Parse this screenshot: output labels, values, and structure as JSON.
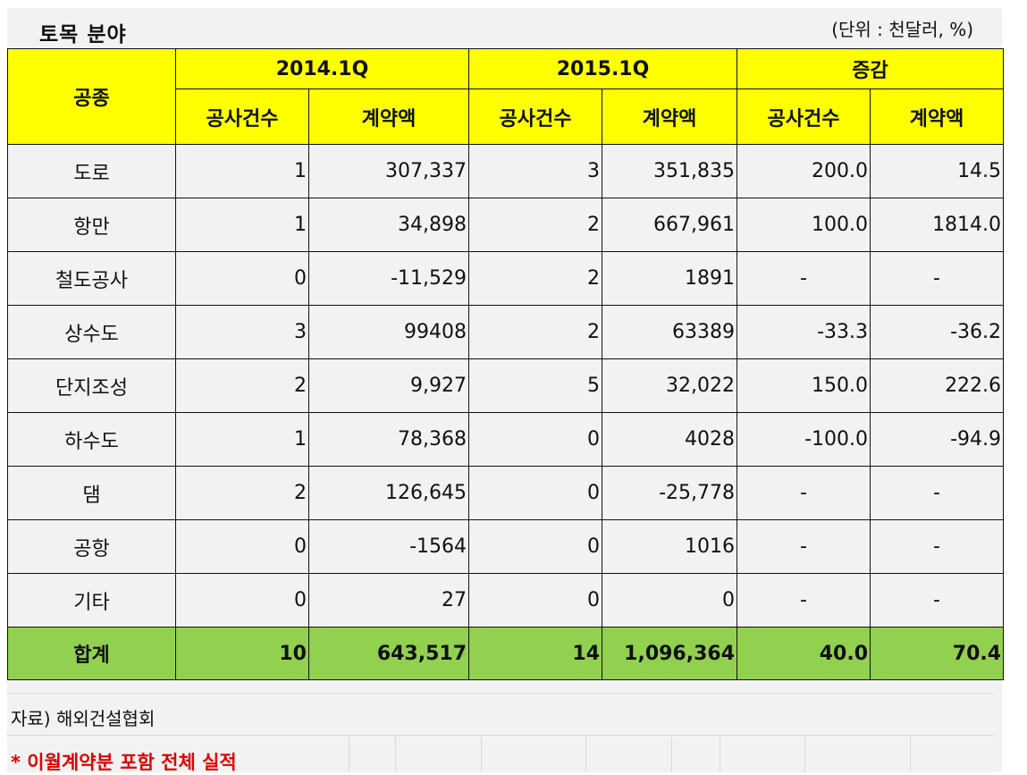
{
  "title": "토목 분야",
  "unit": "(단위 : 천달러, %)",
  "headers": {
    "category": "공종",
    "periods": [
      "2014.1Q",
      "2015.1Q",
      "증감"
    ],
    "sub": [
      "공사건수",
      "계약액",
      "공사건수",
      "계약액",
      "공사건수",
      "계약액"
    ]
  },
  "rows": [
    {
      "name": "도로",
      "cells": [
        "1",
        "307,337",
        "3",
        "351,835",
        "200.0",
        "14.5"
      ]
    },
    {
      "name": "항만",
      "cells": [
        "1",
        "34,898",
        "2",
        "667,961",
        "100.0",
        "1814.0"
      ]
    },
    {
      "name": "철도공사",
      "cells": [
        "0",
        "-11,529",
        "2",
        "1891",
        "-",
        "-"
      ]
    },
    {
      "name": "상수도",
      "cells": [
        "3",
        "99408",
        "2",
        "63389",
        "-33.3",
        "-36.2"
      ]
    },
    {
      "name": "단지조성",
      "cells": [
        "2",
        "9,927",
        "5",
        "32,022",
        "150.0",
        "222.6"
      ]
    },
    {
      "name": "하수도",
      "cells": [
        "1",
        "78,368",
        "0",
        "4028",
        "-100.0",
        "-94.9"
      ]
    },
    {
      "name": "댐",
      "cells": [
        "2",
        "126,645",
        "0",
        "-25,778",
        "-",
        "-"
      ]
    },
    {
      "name": "공항",
      "cells": [
        "0",
        "-1564",
        "0",
        "1016",
        "-",
        "-"
      ]
    },
    {
      "name": "기타",
      "cells": [
        "0",
        "27",
        "0",
        "0",
        "-",
        "-"
      ]
    }
  ],
  "total": {
    "name": "합계",
    "cells": [
      "10",
      "643,517",
      "14",
      "1,096,364",
      "40.0",
      "70.4"
    ]
  },
  "source": "자료) 해외건설협회",
  "note": "* 이월계약분 포함 전체 실적"
}
